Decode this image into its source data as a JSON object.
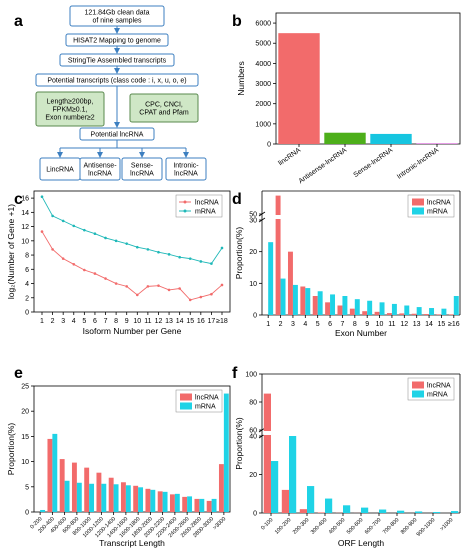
{
  "panel_a": {
    "label": "a",
    "steps": [
      "121.84Gb clean data\nof nine samples",
      "HISAT2 Mapping to genome",
      "StringTie Assembled transcripts",
      "Potential transcripts (class code : i, x, u, o, e)",
      "Potential lncRNA"
    ],
    "filter_left": "Length≥200bp,\nFPKM≥0.1,\nExon number≥2",
    "filter_right": "CPC, CNCI,\nCPAT and Pfam",
    "categories": [
      "LincRNA",
      "Antisense-\nlncRNA",
      "Sense-\nlncRNA",
      "Intronic-\nlncRNA"
    ]
  },
  "chart_data": [
    {
      "panel": "b",
      "type": "bar",
      "categories": [
        "lincRNA",
        "Antisense-lncRNA",
        "Sense-lncRNA",
        "Intronic-lncRNA"
      ],
      "values": [
        5500,
        560,
        500,
        25
      ],
      "colors": [
        "#f26b6b",
        "#4daf1a",
        "#16c5e0",
        "#cc3bcc"
      ],
      "ylabel": "Numbers",
      "ylim": [
        0,
        6500
      ],
      "yticks": [
        0,
        1000,
        2000,
        3000,
        4000,
        5000,
        6000
      ]
    },
    {
      "panel": "c",
      "type": "line",
      "categories": [
        "1",
        "2",
        "3",
        "4",
        "5",
        "6",
        "7",
        "8",
        "9",
        "10",
        "11",
        "12",
        "13",
        "14",
        "15",
        "16",
        "17",
        "≥18"
      ],
      "series": [
        {
          "name": "lncRNA",
          "color": "#f26b6b",
          "values": [
            11.3,
            8.8,
            7.5,
            6.7,
            5.9,
            5.4,
            4.7,
            4.0,
            3.6,
            2.4,
            3.6,
            3.7,
            3.1,
            3.3,
            1.7,
            2.1,
            2.5,
            3.8
          ]
        },
        {
          "name": "mRNA",
          "color": "#1fb8b8",
          "values": [
            16.2,
            13.5,
            12.8,
            12.1,
            11.5,
            11.0,
            10.4,
            10.0,
            9.6,
            9.1,
            8.8,
            8.4,
            8.1,
            7.7,
            7.5,
            7.1,
            6.8,
            9.0
          ]
        }
      ],
      "xlabel": "Isoform Number per Gene",
      "ylabel": "log₂(Number of Gene +1)",
      "ylim": [
        0,
        17
      ],
      "yticks": [
        0,
        2,
        4,
        6,
        8,
        10,
        12,
        14,
        16
      ]
    },
    {
      "panel": "d",
      "type": "bar",
      "categories": [
        "1",
        "2",
        "3",
        "4",
        "5",
        "6",
        "7",
        "8",
        "9",
        "10",
        "11",
        "12",
        "13",
        "14",
        "15",
        "≥16"
      ],
      "series": [
        {
          "name": "lncRNA",
          "color": "#f26b6b",
          "values": [
            0,
            54,
            20,
            9,
            6,
            4,
            3,
            2,
            1.2,
            1,
            0.6,
            0.5,
            0.4,
            0.3,
            0.2,
            0.2
          ]
        },
        {
          "name": "mRNA",
          "color": "#1fd3e6",
          "values": [
            23,
            11.5,
            9.5,
            8.5,
            7.5,
            6.5,
            6,
            5,
            4.5,
            4,
            3.5,
            3,
            2.5,
            2.2,
            2,
            6
          ]
        }
      ],
      "xlabel": "Exon Number",
      "ylabel": "Proportion(%)",
      "axis_break": {
        "lower": [
          0,
          30
        ],
        "upper": [
          50,
          55
        ]
      },
      "yticks_lower": [
        0,
        10,
        20,
        30
      ],
      "yticks_upper": [
        50
      ]
    },
    {
      "panel": "e",
      "type": "bar",
      "categories": [
        "0-200",
        "200-400",
        "400-600",
        "600-800",
        "800-1000",
        "1000-1200",
        "1200-1400",
        "1400-1600",
        "1600-1800",
        "1800-2000",
        "2000-2200",
        "2200-2400",
        "2400-2600",
        "2600-2800",
        "2800-3000",
        ">3000"
      ],
      "series": [
        {
          "name": "lncRNA",
          "color": "#f26b6b",
          "values": [
            0,
            14.5,
            10.5,
            9.8,
            8.8,
            7.8,
            6.8,
            5.9,
            5.2,
            4.6,
            4.1,
            3.5,
            3.0,
            2.6,
            2.2,
            9.5
          ]
        },
        {
          "name": "mRNA",
          "color": "#1fd3e6",
          "values": [
            0.4,
            15.5,
            6.2,
            5.8,
            5.6,
            5.6,
            5.5,
            5.3,
            4.9,
            4.4,
            4.0,
            3.6,
            3.1,
            2.6,
            2.6,
            23.5
          ]
        }
      ],
      "xlabel": "Transcript Length",
      "ylabel": "Proportion(%)",
      "ylim": [
        0,
        25
      ],
      "yticks": [
        0,
        5,
        10,
        15,
        20,
        25
      ]
    },
    {
      "panel": "f",
      "type": "bar",
      "categories": [
        "0-100",
        "100-200",
        "200-300",
        "300-400",
        "400-500",
        "500-600",
        "600-700",
        "700-800",
        "800-900",
        "900-1000",
        ">1000"
      ],
      "series": [
        {
          "name": "lncRNA",
          "color": "#f26b6b",
          "values": [
            86,
            12,
            2,
            0.3,
            0.1,
            0.05,
            0,
            0,
            0,
            0,
            0
          ]
        },
        {
          "name": "mRNA",
          "color": "#1fd3e6",
          "values": [
            27,
            40,
            14,
            7.5,
            4,
            2.8,
            1.8,
            1.2,
            0.8,
            0.5,
            1.0
          ]
        }
      ],
      "xlabel": "ORF Length",
      "ylabel": "Proportion(%)",
      "axis_break": {
        "lower": [
          0,
          40
        ],
        "upper": [
          60,
          100
        ]
      },
      "yticks_lower": [
        0,
        20,
        40
      ],
      "yticks_upper": [
        60,
        80,
        100
      ]
    }
  ]
}
